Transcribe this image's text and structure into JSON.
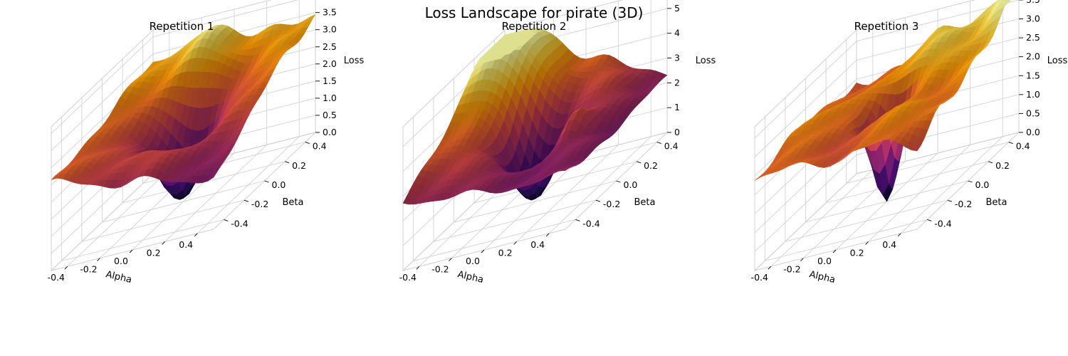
{
  "figure": {
    "title": "Loss Landscape for pirate (3D)"
  },
  "colormap": [
    "#000004",
    "#1b0c41",
    "#4a0c6b",
    "#781c6d",
    "#a52c60",
    "#cf4446",
    "#ed6925",
    "#fb9b06",
    "#f7d13d",
    "#fcffa4"
  ],
  "chart_data": [
    {
      "type": "surface3d",
      "title": "Repetition 1",
      "xlabel": "Alpha",
      "ylabel": "Beta",
      "zlabel": "Loss",
      "xlim": [
        -0.5,
        0.5
      ],
      "ylim": [
        -0.5,
        0.5
      ],
      "zlim": [
        0,
        4.2
      ],
      "xticks": [
        "-0.4",
        "-0.2",
        "0.0",
        "0.2",
        "0.4"
      ],
      "yticks": [
        "-0.4",
        "-0.2",
        "0.0",
        "0.2",
        "0.4"
      ],
      "zticks": [
        "0.0",
        "0.5",
        "1.0",
        "1.5",
        "2.0",
        "2.5",
        "3.0",
        "3.5",
        "4.0"
      ],
      "surface": {
        "grid": [
          -0.5,
          0.5
        ],
        "minimum": [
          0.0,
          0.0,
          0.0
        ],
        "corner_values": {
          "min_corner": 1.6,
          "near_left": 2.3,
          "back": 3.3,
          "right_corner": 3.4
        },
        "max_loss": 4.1,
        "colormap": "inferno"
      }
    },
    {
      "type": "surface3d",
      "title": "Repetition 2",
      "xlabel": "Alpha",
      "ylabel": "Beta",
      "zlabel": "Loss",
      "xlim": [
        -0.5,
        0.5
      ],
      "ylim": [
        -0.5,
        0.5
      ],
      "zlim": [
        0,
        5.8
      ],
      "xticks": [
        "-0.4",
        "-0.2",
        "0.0",
        "0.2",
        "0.4"
      ],
      "yticks": [
        "-0.4",
        "-0.2",
        "0.0",
        "0.2",
        "0.4"
      ],
      "zticks": [
        "0",
        "1",
        "2",
        "3",
        "4",
        "5"
      ],
      "surface": {
        "grid": [
          -0.5,
          0.5
        ],
        "minimum": [
          0.0,
          0.0,
          0.0
        ],
        "corner_values": {
          "min_corner": 2.0,
          "near_left": 2.7,
          "back": 5.6,
          "right_corner": 2.4
        },
        "max_loss": 5.6,
        "colormap": "inferno"
      }
    },
    {
      "type": "surface3d",
      "title": "Repetition 3",
      "xlabel": "Alpha",
      "ylabel": "Beta",
      "zlabel": "Loss",
      "xlim": [
        -0.5,
        0.5
      ],
      "ylim": [
        -0.5,
        0.5
      ],
      "zlim": [
        0,
        3.8
      ],
      "xticks": [
        "-0.4",
        "-0.2",
        "0.0",
        "0.2",
        "0.4"
      ],
      "yticks": [
        "-0.4",
        "-0.2",
        "0.0",
        "0.2",
        "0.4"
      ],
      "zticks": [
        "0.0",
        "0.5",
        "1.0",
        "1.5",
        "2.0",
        "2.5",
        "3.0",
        "3.5"
      ],
      "surface": {
        "grid": [
          -0.5,
          0.5
        ],
        "minimum": [
          0.0,
          0.0,
          0.0
        ],
        "corner_values": {
          "min_corner": 2.3,
          "near_left": 2.6,
          "back": 2.4,
          "right_corner": 3.7
        },
        "max_loss": 3.7,
        "colormap": "inferno"
      }
    }
  ]
}
